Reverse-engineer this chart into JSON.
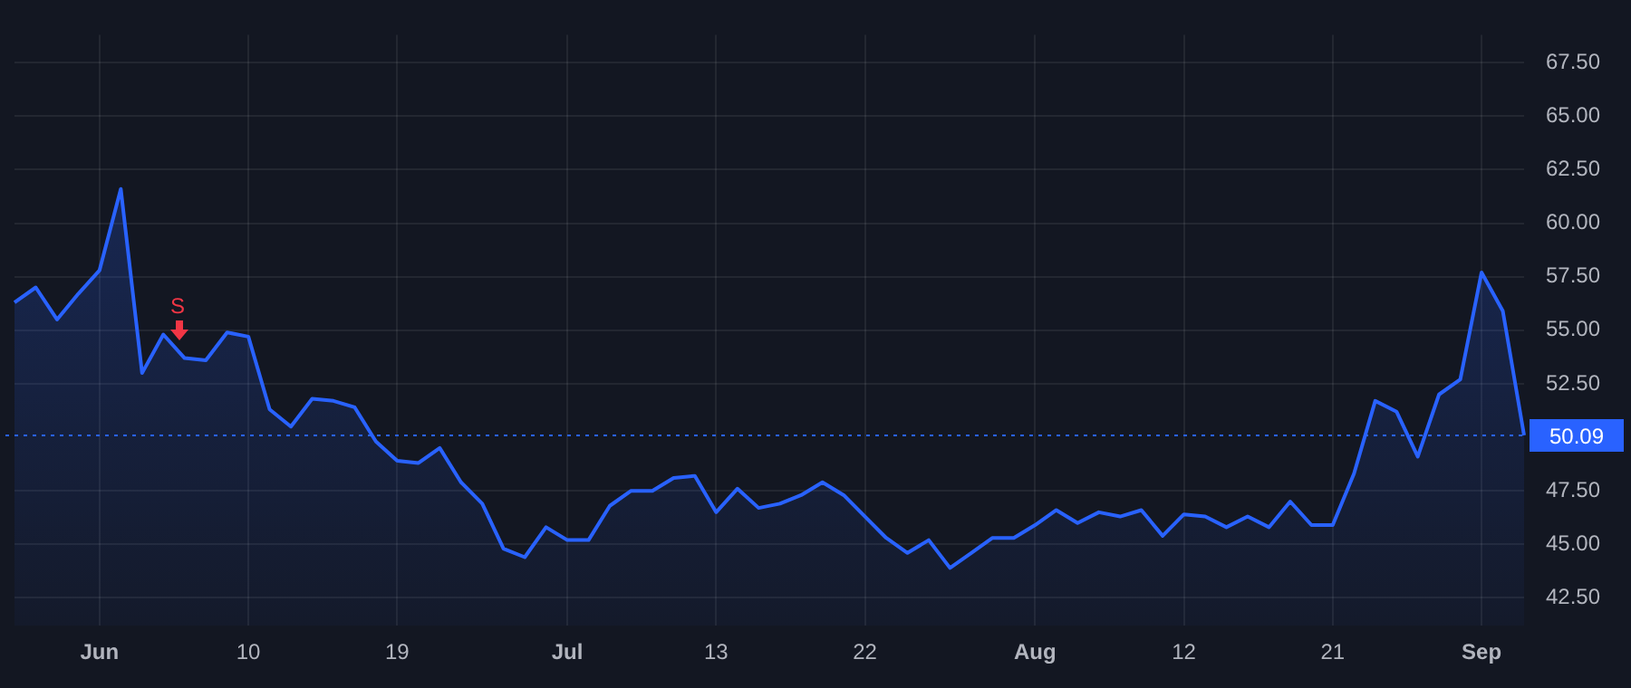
{
  "chart_data": {
    "type": "area",
    "categories": [
      null,
      null,
      null,
      null,
      "Jun",
      null,
      null,
      null,
      null,
      null,
      null,
      "10",
      null,
      null,
      null,
      null,
      null,
      null,
      "19",
      null,
      null,
      null,
      null,
      null,
      null,
      null,
      "Jul",
      null,
      null,
      null,
      null,
      null,
      null,
      "13",
      null,
      null,
      null,
      null,
      null,
      null,
      "22",
      null,
      null,
      null,
      null,
      null,
      null,
      null,
      "Aug",
      null,
      null,
      null,
      null,
      null,
      null,
      "12",
      null,
      null,
      null,
      null,
      null,
      null,
      "21",
      null,
      null,
      null,
      null,
      null,
      null,
      "Sep",
      null,
      null
    ],
    "series": [
      {
        "color": "#2962ff",
        "values": [
          56.3,
          57.0,
          55.5,
          56.7,
          57.8,
          61.6,
          53.0,
          54.8,
          53.7,
          53.6,
          54.9,
          54.7,
          51.3,
          50.5,
          51.8,
          51.7,
          51.4,
          49.8,
          48.9,
          48.8,
          49.5,
          47.9,
          46.9,
          44.8,
          44.4,
          45.8,
          45.2,
          45.2,
          46.8,
          47.5,
          47.5,
          48.1,
          48.2,
          46.5,
          47.6,
          46.7,
          46.9,
          47.3,
          47.9,
          47.3,
          46.3,
          45.3,
          44.6,
          45.2,
          43.9,
          44.6,
          45.3,
          45.3,
          45.9,
          46.6,
          46.0,
          46.5,
          46.3,
          46.6,
          45.4,
          46.4,
          46.3,
          45.8,
          46.3,
          45.8,
          47.0,
          45.9,
          45.9,
          48.3,
          51.7,
          51.2,
          49.1,
          52.0,
          52.7,
          57.7,
          55.9,
          50.09
        ]
      }
    ],
    "ylim": [
      41.2,
      68.8
    ],
    "yticks": [
      {
        "value": 42.5,
        "label": "42.50"
      },
      {
        "value": 45,
        "label": "45.00"
      },
      {
        "value": 47.5,
        "label": "47.50"
      },
      {
        "value": 52.5,
        "label": "52.50"
      },
      {
        "value": 55,
        "label": "55.00"
      },
      {
        "value": 57.5,
        "label": "57.50"
      },
      {
        "value": 60,
        "label": "60.00"
      },
      {
        "value": 62.5,
        "label": "62.50"
      },
      {
        "value": 65,
        "label": "65.00"
      },
      {
        "value": 67.5,
        "label": "67.50"
      }
    ],
    "ref_lines": [
      {
        "axis": "y",
        "value": 50.09,
        "label": "50.09",
        "color": "#2962ff",
        "line_style": "dotted"
      }
    ],
    "annotations": [
      "S"
    ],
    "grid": true,
    "legend": false
  }
}
